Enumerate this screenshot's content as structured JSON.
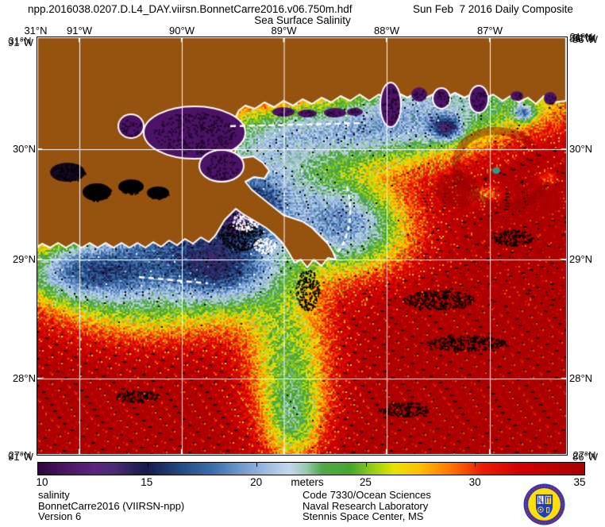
{
  "header": {
    "filename": "npp.2016038.0207.D.L4_DAY.viirsn.BonnetCarre2016.v06.750m.hdf",
    "date_label": "Sun Feb  7 2016 Daily Composite",
    "title": "Sea Surface Salinity"
  },
  "axes": {
    "top_labels": [
      "31°N",
      "91°W",
      "90°W",
      "89°W",
      "88°W",
      "87°W"
    ],
    "side_labels": [
      "30°N",
      "29°N",
      "28°N"
    ],
    "corner_overlap": {
      "top_lat": "31°N",
      "bottom_lat": "27°N",
      "left_lon": "91°W",
      "right_lon": "86°W"
    }
  },
  "colorbar": {
    "ticks": [
      "10",
      "15",
      "20",
      "25",
      "30",
      "35"
    ],
    "min": 10,
    "max": 35,
    "unit": "meters",
    "gradient_stops": [
      [
        10.0,
        42,
        8,
        60
      ],
      [
        11.0,
        70,
        18,
        92
      ],
      [
        12.5,
        92,
        35,
        128
      ],
      [
        13.5,
        74,
        42,
        118
      ],
      [
        14.5,
        36,
        32,
        84
      ],
      [
        15.0,
        24,
        26,
        76
      ],
      [
        16.5,
        35,
        74,
        128
      ],
      [
        18.0,
        60,
        110,
        172
      ],
      [
        19.5,
        122,
        160,
        208
      ],
      [
        20.5,
        160,
        190,
        226
      ],
      [
        21.5,
        196,
        216,
        236
      ],
      [
        22.3,
        150,
        200,
        170
      ],
      [
        23.0,
        80,
        170,
        70
      ],
      [
        24.3,
        70,
        165,
        45
      ],
      [
        25.3,
        150,
        205,
        25
      ],
      [
        26.3,
        230,
        228,
        0
      ],
      [
        27.5,
        255,
        190,
        0
      ],
      [
        29.0,
        255,
        110,
        0
      ],
      [
        30.3,
        235,
        30,
        0
      ],
      [
        32.0,
        210,
        0,
        0
      ],
      [
        35.0,
        168,
        0,
        0
      ]
    ]
  },
  "footer": {
    "left": [
      "salinity",
      "BonnetCarre2016 (VIIRSN-npp)",
      "Version 6"
    ],
    "right": [
      "Code 7330/Ocean Sciences",
      "Naval Research Laboratory",
      "Stennis Space Center, MS"
    ]
  },
  "logo": {
    "name": "NRL seal"
  },
  "colors": {
    "land": "#96520f",
    "coastline": "#ffffff",
    "gridline": "#ffffff",
    "lake": "#4c1266",
    "background": "#ffffff"
  }
}
